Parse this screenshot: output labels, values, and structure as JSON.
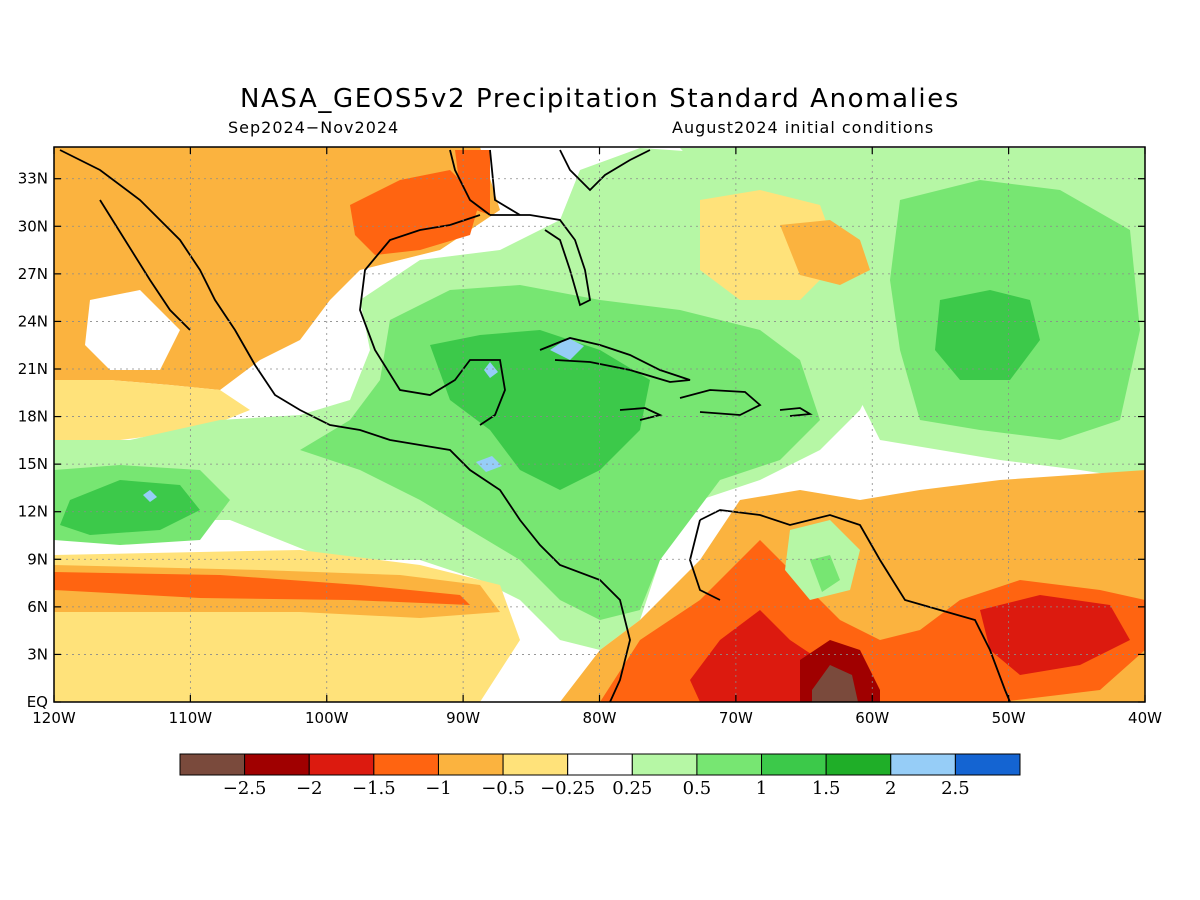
{
  "header": {
    "title": "NASA_GEOS5v2 Precipitation Standard Anomalies",
    "period": "Sep2024−Nov2024",
    "init": "August2024 initial conditions"
  },
  "map": {
    "lon_range": [
      -120,
      -40
    ],
    "lat_range": [
      0,
      35
    ],
    "lat_ticks": [
      {
        "value": 33,
        "label": "33N"
      },
      {
        "value": 30,
        "label": "30N"
      },
      {
        "value": 27,
        "label": "27N"
      },
      {
        "value": 24,
        "label": "24N"
      },
      {
        "value": 21,
        "label": "21N"
      },
      {
        "value": 18,
        "label": "18N"
      },
      {
        "value": 15,
        "label": "15N"
      },
      {
        "value": 12,
        "label": "12N"
      },
      {
        "value": 9,
        "label": "9N"
      },
      {
        "value": 6,
        "label": "6N"
      },
      {
        "value": 3,
        "label": "3N"
      },
      {
        "value": 0,
        "label": "EQ"
      }
    ],
    "lon_ticks": [
      {
        "value": -120,
        "label": "120W"
      },
      {
        "value": -110,
        "label": "110W"
      },
      {
        "value": -100,
        "label": "100W"
      },
      {
        "value": -90,
        "label": "90W"
      },
      {
        "value": -80,
        "label": "80W"
      },
      {
        "value": -70,
        "label": "70W"
      },
      {
        "value": -60,
        "label": "60W"
      },
      {
        "value": -50,
        "label": "50W"
      },
      {
        "value": -40,
        "label": "40W"
      }
    ],
    "grid": "dotted"
  },
  "colorbar": {
    "colors": [
      "#7a4a3c",
      "#a00000",
      "#dc1a0f",
      "#ff6411",
      "#fbb33f",
      "#ffe27a",
      "#ffffff",
      "#b6f7a5",
      "#77e672",
      "#3cc94a",
      "#1fae28",
      "#96cdf7",
      "#1464d2"
    ],
    "labels": [
      "−2.5",
      "−2",
      "−1.5",
      "−1",
      "−0.5",
      "−0.25",
      "0.25",
      "0.5",
      "1",
      "1.5",
      "2",
      "2.5"
    ]
  }
}
